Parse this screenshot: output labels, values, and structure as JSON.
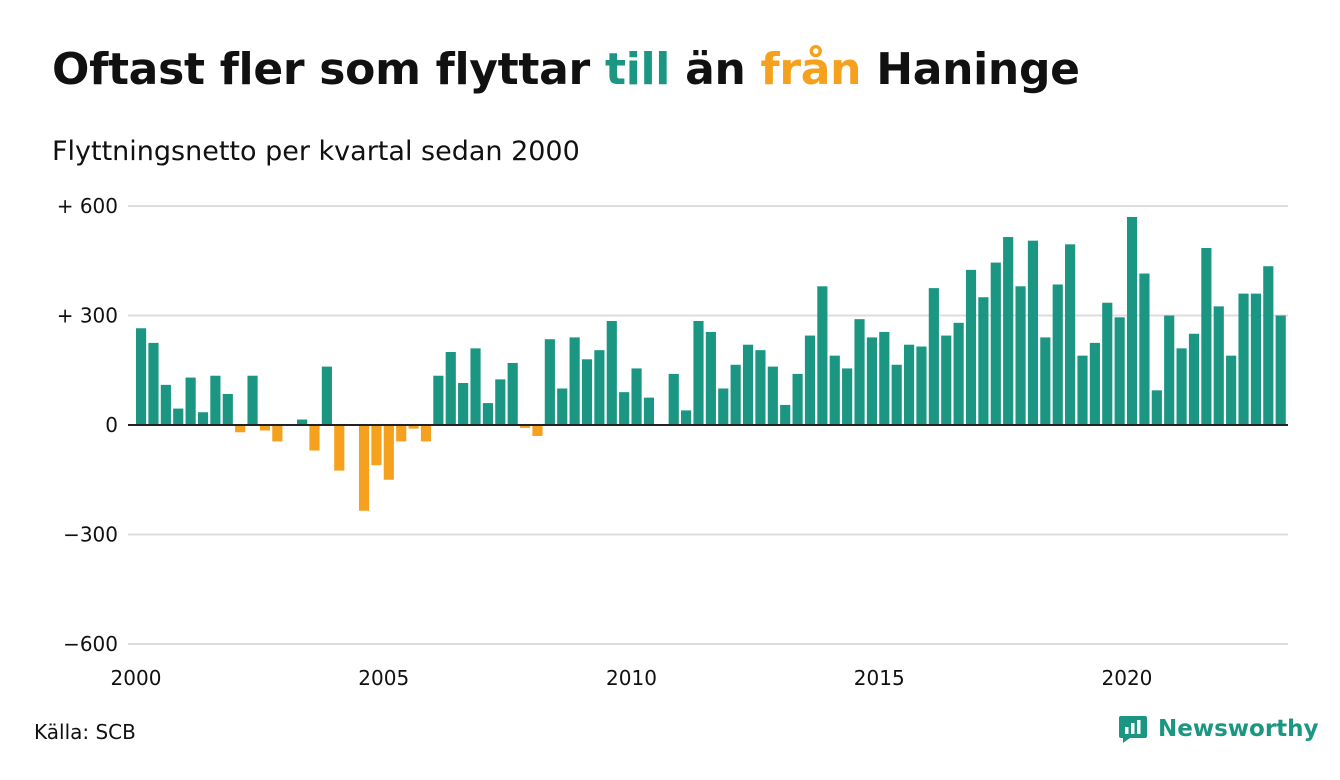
{
  "header": {
    "title_part1": "Oftast fler som flyttar ",
    "title_till": "till",
    "title_mid": " än ",
    "title_fran": "från",
    "title_end": " Haninge",
    "subtitle": "Flyttningsnetto per kvartal sedan 2000"
  },
  "footer": {
    "source": "Källa: SCB",
    "brand": "Newsworthy"
  },
  "colors": {
    "positive": "#1a9682",
    "negative": "#f5a11d",
    "grid": "#dddddd",
    "zero_line": "#222222",
    "text": "#111111"
  },
  "icons": {
    "brand_logo": "bar-chart-speech-bubble-icon"
  },
  "chart_data": {
    "type": "bar",
    "title": "Oftast fler som flyttar till än från Haninge",
    "subtitle": "Flyttningsnetto per kvartal sedan 2000",
    "xlabel": "",
    "ylabel": "",
    "ylim": [
      -600,
      600
    ],
    "xlim": [
      2000,
      2023.25
    ],
    "y_ticks": [
      600,
      300,
      0,
      -300,
      -600
    ],
    "y_tick_labels": [
      "+ 600",
      "+ 300",
      "0",
      "−300",
      "−600"
    ],
    "x_ticks": [
      2000,
      2005,
      2010,
      2015,
      2020
    ],
    "x_tick_labels": [
      "2000",
      "2005",
      "2010",
      "2015",
      "2020"
    ],
    "grid": true,
    "start_year": 2000,
    "periods_per_year": 4,
    "values": [
      265,
      225,
      110,
      45,
      130,
      35,
      135,
      85,
      -20,
      135,
      -15,
      -45,
      0,
      15,
      -70,
      160,
      -125,
      0,
      -235,
      -110,
      -150,
      -45,
      -10,
      -45,
      135,
      200,
      115,
      210,
      60,
      125,
      170,
      -8,
      -30,
      235,
      100,
      240,
      180,
      205,
      285,
      90,
      155,
      75,
      0,
      140,
      40,
      285,
      255,
      100,
      165,
      220,
      205,
      160,
      55,
      140,
      245,
      380,
      190,
      155,
      290,
      240,
      255,
      165,
      220,
      215,
      375,
      245,
      280,
      425,
      350,
      445,
      515,
      380,
      505,
      240,
      385,
      495,
      190,
      225,
      335,
      295,
      570,
      415,
      95,
      300,
      210,
      250,
      485,
      325,
      190,
      360,
      360,
      435,
      300
    ]
  }
}
